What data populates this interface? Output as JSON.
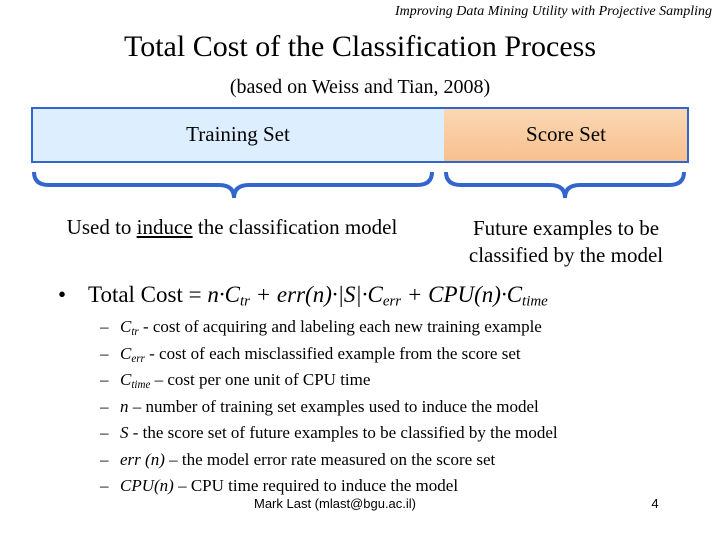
{
  "header": {
    "running_title": "Improving Data Mining Utility with Projective Sampling",
    "title": "Total Cost of the Classification Process",
    "subtitle": "(based on Weiss and Tian, 2008)"
  },
  "boxes": {
    "training": "Training Set",
    "score": "Score Set"
  },
  "captions": {
    "training": {
      "before": "Used to ",
      "underlined": "induce",
      "after": " the classification model"
    },
    "score": [
      "Future examples to be",
      "classified by the model"
    ]
  },
  "formula": {
    "lead": "Total Cost = ",
    "t1": "n·C",
    "s1": "tr",
    "t2": " + err(n)·|S|·C",
    "s2": "err",
    "t3": " + CPU(n)·C",
    "s3": "time"
  },
  "items": [
    {
      "term": "C",
      "sub": "tr",
      "text": " - cost of acquiring and labeling each new training example"
    },
    {
      "term": "C",
      "sub": "err",
      "text": " - cost of each misclassified example from the score set"
    },
    {
      "term": "C",
      "sub": "time",
      "text": " – cost per one unit of CPU time"
    },
    {
      "term": "n",
      "text": " – number of training set examples used to induce the model"
    },
    {
      "term": "S",
      "text": " - the score set of future examples to be classified by the model"
    },
    {
      "term": "err (n)",
      "text": " – the model error rate measured on the score set"
    },
    {
      "term": "CPU(n)",
      "text": " – CPU time required to induce the model"
    }
  ],
  "footer": {
    "author": "Mark Last (mlast@bgu.ac.il)",
    "page": "4"
  }
}
